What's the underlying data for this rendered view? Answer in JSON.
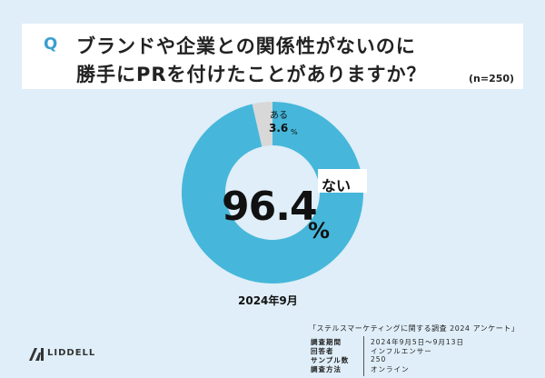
{
  "question": {
    "mark": "Q",
    "line1": "ブランドや企業との関係性がないのに",
    "line2": "勝手にPRを付けたことがありますか？",
    "n_note": "(n=250)"
  },
  "chart_data": {
    "type": "pie",
    "categories": [
      "ない",
      "ある"
    ],
    "values": [
      96.4,
      3.6
    ],
    "unit": "%",
    "colors": {
      "ない": "#46b7da",
      "ある": "#d8d8d8"
    }
  },
  "labels": {
    "aru_name": "ある",
    "aru_value": "3.6",
    "aru_unit": "%",
    "nai_name": "ない",
    "nai_value": "96.4",
    "nai_unit": "%"
  },
  "period": "2024年9月",
  "brand": "LIDDELL",
  "survey": {
    "title": "「ステルスマーケティングに関する調査 2024 アンケート」",
    "rows": [
      {
        "key": "調査期間",
        "value": "2024年9月5日〜9月13日"
      },
      {
        "key": "回答者",
        "value": "インフルエンサー"
      },
      {
        "key": "サンプル数",
        "value": "250"
      },
      {
        "key": "調査方法",
        "value": "オンライン"
      }
    ]
  }
}
